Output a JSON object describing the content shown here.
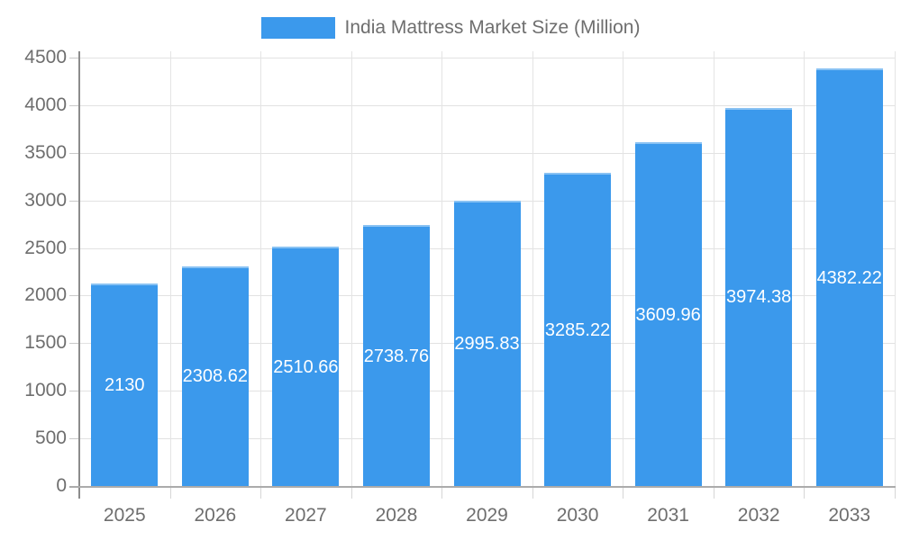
{
  "chart_data": {
    "type": "bar",
    "title": "India Mattress Market Size (Million)",
    "legend": {
      "label": "India Mattress Market Size (Million)",
      "position": "top"
    },
    "categories": [
      "2025",
      "2026",
      "2027",
      "2028",
      "2029",
      "2030",
      "2031",
      "2032",
      "2033"
    ],
    "values": [
      2130,
      2308.62,
      2510.66,
      2738.76,
      2995.83,
      3285.22,
      3609.96,
      3974.38,
      4382.22
    ],
    "value_labels": [
      "2130",
      "2308.62",
      "2510.66",
      "2738.76",
      "2995.83",
      "3285.22",
      "3609.96",
      "3974.38",
      "4382.22"
    ],
    "xlabel": "",
    "ylabel": "",
    "ylim": [
      0,
      4500
    ],
    "yticks": [
      0,
      500,
      1000,
      1500,
      2000,
      2500,
      3000,
      3500,
      4000,
      4500
    ],
    "grid": true,
    "colors": {
      "bar": "#3b99ec",
      "value_label": "#ffffff",
      "axis_text": "#6e6e6e",
      "gridline": "#e2e2e2"
    }
  }
}
